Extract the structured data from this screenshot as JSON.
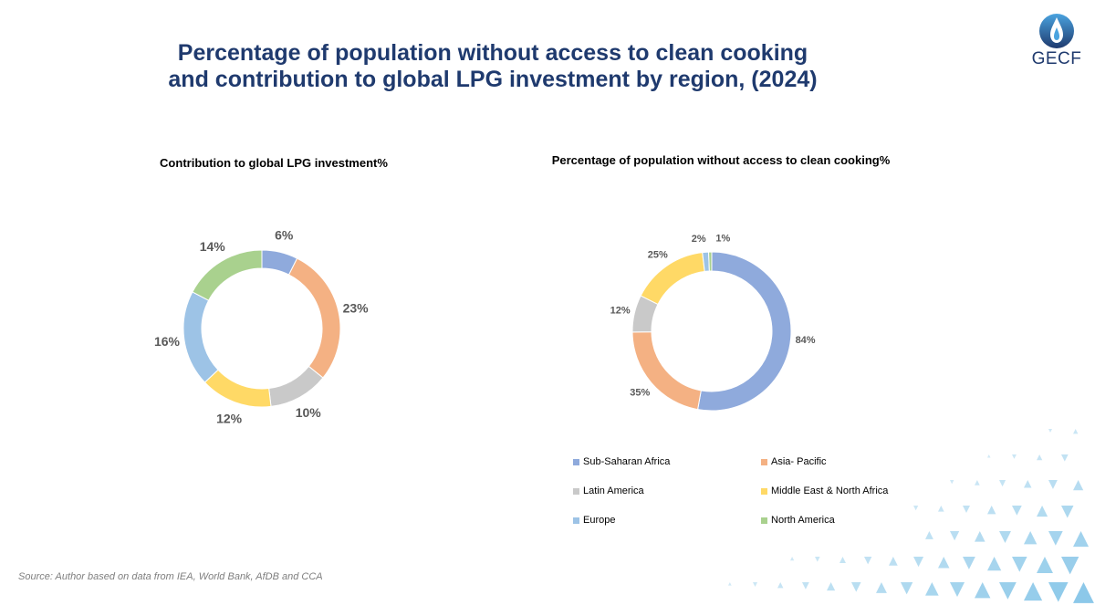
{
  "header": {
    "title_line1": "Percentage of population without access to clean cooking",
    "title_line2": "and contribution to global LPG investment by region, (2024)",
    "logo_text": "GECF"
  },
  "source": "Source: Author based on data from IEA, World Bank, AfDB and CCA",
  "colors": {
    "title": "#1f3a6e",
    "sub_saharan_africa": "#8faadc",
    "asia_pacific": "#f4b183",
    "latin_america": "#c9c9c9",
    "middle_east_north_africa": "#ffd966",
    "europe": "#9dc3e6",
    "north_america": "#a9d18e",
    "decoration": "#5fb3e0"
  },
  "legend": [
    {
      "label": "Sub-Saharan Africa",
      "color": "#8faadc"
    },
    {
      "label": "Asia- Pacific",
      "color": "#f4b183"
    },
    {
      "label": "Latin America",
      "color": "#c9c9c9"
    },
    {
      "label": "Middle East & North Africa",
      "color": "#ffd966"
    },
    {
      "label": "Europe",
      "color": "#9dc3e6"
    },
    {
      "label": "North America",
      "color": "#a9d18e"
    }
  ],
  "chart_data": [
    {
      "type": "pie",
      "title": "Contribution  to global LPG investment%",
      "categories": [
        "Sub-Saharan Africa",
        "Asia- Pacific",
        "Latin America",
        "Middle East & North Africa",
        "Europe",
        "North America"
      ],
      "values": [
        6,
        23,
        10,
        12,
        16,
        14
      ],
      "labels": [
        "6%",
        "23%",
        "10%",
        "12%",
        "16%",
        "14%"
      ]
    },
    {
      "type": "pie",
      "title": "Percentage of population  without access to clean cooking%",
      "categories": [
        "Sub-Saharan Africa",
        "Asia- Pacific",
        "Latin America",
        "Middle East & North Africa",
        "Europe",
        "North America"
      ],
      "values": [
        84,
        35,
        12,
        25,
        2,
        1
      ],
      "labels": [
        "84%",
        "35%",
        "12%",
        "25%",
        "2%",
        "1%"
      ],
      "legend_position": "bottom"
    }
  ]
}
